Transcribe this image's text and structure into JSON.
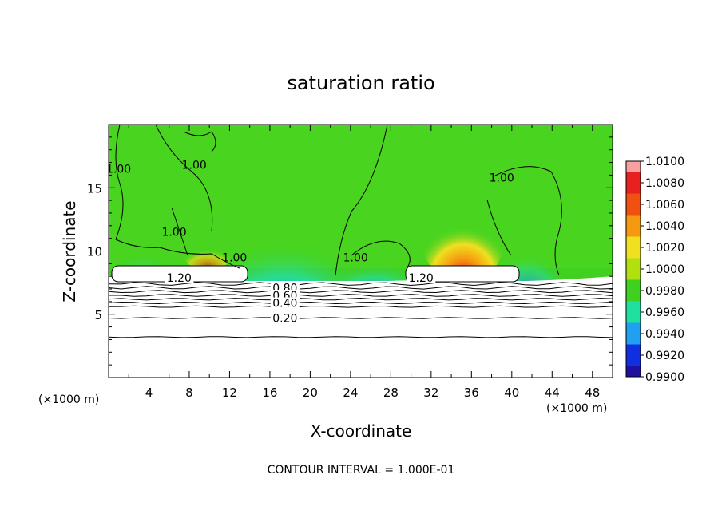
{
  "chart_data": {
    "type": "heatmap",
    "title": "saturation ratio",
    "xlabel": "X-coordinate",
    "ylabel": "Z-coordinate",
    "x_unit_left": "(×1000 m)",
    "x_unit_right": "(×1000 m)",
    "footer": "CONTOUR INTERVAL = 1.000E-01",
    "xlim": [
      0,
      50
    ],
    "ylim": [
      0,
      20
    ],
    "x_ticks": [
      4,
      8,
      12,
      16,
      20,
      24,
      28,
      32,
      36,
      40,
      44,
      48
    ],
    "y_ticks": [
      5,
      10,
      15
    ],
    "colorbar": {
      "levels": [
        "1.0100",
        "1.0080",
        "1.0060",
        "1.0040",
        "1.0020",
        "1.0000",
        "0.9980",
        "0.9960",
        "0.9940",
        "0.9920",
        "0.9900"
      ],
      "colors": [
        "#f8a0a0",
        "#e82020",
        "#f05010",
        "#f59a10",
        "#f0e020",
        "#b0e010",
        "#40d020",
        "#20e0a0",
        "#20a0f0",
        "#1030e0",
        "#2010a0",
        "#602090"
      ]
    },
    "contour_labels": [
      {
        "text": "1.20",
        "x": 7,
        "z": 7.9
      },
      {
        "text": "1.20",
        "x": 31,
        "z": 7.9
      },
      {
        "text": "0.80",
        "x": 17.5,
        "z": 7.1
      },
      {
        "text": "0.60",
        "x": 17.5,
        "z": 6.5
      },
      {
        "text": "0.40",
        "x": 17.5,
        "z": 5.9
      },
      {
        "text": "0.20",
        "x": 17.5,
        "z": 4.7
      },
      {
        "text": "1.00",
        "x": 1,
        "z": 16.5
      },
      {
        "text": "1.00",
        "x": 8.5,
        "z": 16.8
      },
      {
        "text": "1.00",
        "x": 6.5,
        "z": 11.5
      },
      {
        "text": "1.00",
        "x": 12.5,
        "z": 9.5
      },
      {
        "text": "1.00",
        "x": 24.5,
        "z": 9.5
      },
      {
        "text": "1.00",
        "x": 39,
        "z": 15.8
      }
    ],
    "horizontal_contours_z": [
      3.2,
      4.7,
      5.6,
      5.9,
      6.2,
      6.5,
      6.8,
      7.1,
      7.4
    ],
    "legend": "colorbar-right"
  }
}
